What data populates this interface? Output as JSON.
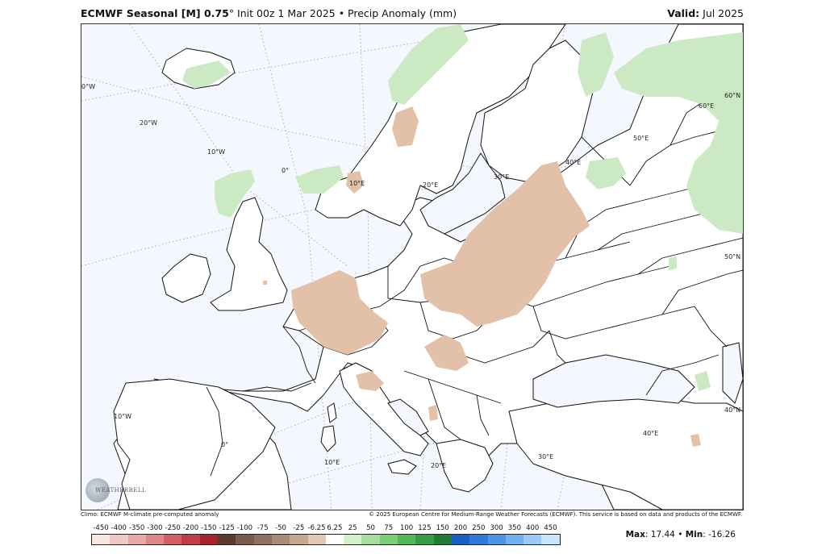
{
  "title": {
    "prefix": "ECMWF Seasonal [M] 0.75",
    "degree": "°",
    "init": " Init 00z 1 Mar 2025 • Precip Anomaly (mm)",
    "valid_label": "Valid:",
    "valid_value": " Jul 2025"
  },
  "map": {
    "graticule_labels": [
      "0°W",
      "20°W",
      "10°W",
      "0°",
      "10°E",
      "20°E",
      "30°E",
      "40°E",
      "50°E",
      "60°E",
      "60°N",
      "50°N",
      "40°N",
      "10°W",
      "0°",
      "10°E",
      "20°E",
      "30°E",
      "40°E"
    ],
    "colors": {
      "water": "#f4f7fd",
      "land": "#ffffff",
      "dry_anomaly": "#e2c1a8",
      "wet_anomaly": "#cbeac3",
      "border": "#111111",
      "graticule": "#9a9aa3"
    }
  },
  "footer": {
    "climo": "Climo: ECMWF M-climate pre-computed anomaly",
    "copyright": "© 2025 European Centre for Medium-Range Weather Forecasts (ECMWF). This service is based on data and products of the ECMWF."
  },
  "colorbar": {
    "labels": [
      "-450",
      "-400",
      "-350",
      "-300",
      "-250",
      "-200",
      "-150",
      "-125",
      "-100",
      "-75",
      "-50",
      "-25",
      "-6.25",
      "6.25",
      "25",
      "50",
      "75",
      "100",
      "125",
      "150",
      "200",
      "250",
      "300",
      "350",
      "400",
      "450"
    ],
    "colors": [
      "#f7e6e2",
      "#f0c8c4",
      "#e7a8a6",
      "#dc8687",
      "#d06066",
      "#c13c45",
      "#a6232b",
      "#5c3a30",
      "#7a5a4a",
      "#8f7060",
      "#a88a78",
      "#c4a890",
      "#e2c9b4",
      "#ffffff",
      "#d4f0cb",
      "#a7dea0",
      "#7dcd78",
      "#55b758",
      "#379c45",
      "#237a33",
      "#1b5fc4",
      "#2d7ad8",
      "#4d94e4",
      "#71afee",
      "#9bcbf5",
      "#c6e7fb"
    ]
  },
  "stats": {
    "max_label": "Max",
    "max_value": ": 17.44",
    "sep": " • ",
    "min_label": "Min",
    "min_value": ": -16.26"
  },
  "logo": {
    "text": "WEATHERBELL"
  }
}
